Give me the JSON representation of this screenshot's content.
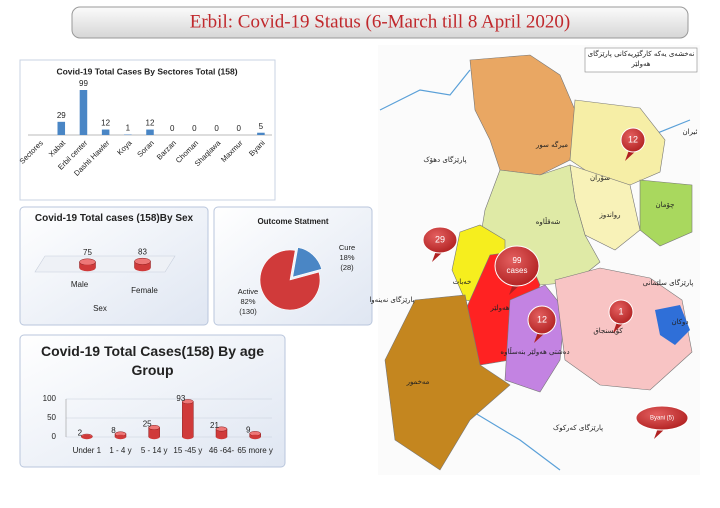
{
  "header": {
    "title": "Erbil: Covid-19 Status (6-March till 8 April 2020)"
  },
  "chart_data": [
    {
      "type": "bar",
      "title": "Covid-19 Total Cases  By Sectores Total (158)",
      "categories": [
        "Sectores",
        "Xabat",
        "Erbil center",
        "Dashti Hawler",
        "Koya",
        "Soran",
        "Barzan",
        "Choman",
        "Shaqlawa",
        "Maxmur",
        "Byani"
      ],
      "values": [
        null,
        29,
        99,
        12,
        1,
        12,
        0,
        0,
        0,
        0,
        5
      ],
      "color": "#4a86c5"
    },
    {
      "type": "cylinder",
      "title": "Covid-19 Total cases (158)By Sex",
      "categories": [
        "Male",
        "Female"
      ],
      "values": [
        75,
        83
      ],
      "x_label": "Sex",
      "color": "#d03a3a"
    },
    {
      "type": "pie",
      "title": "Outcome Statment",
      "categories": [
        "Cure",
        "Active"
      ],
      "values": [
        18,
        82
      ],
      "value_labels": [
        "18%",
        "82%"
      ],
      "count_labels": [
        "(28)",
        "(130)"
      ],
      "colors": [
        "#4a86c5",
        "#d03a3a"
      ]
    },
    {
      "type": "cylinder",
      "title": "Covid-19 Total Cases(158)  By age Group",
      "categories": [
        "Under 1",
        "1 - 4 y",
        "5 - 14 y",
        "15 -45 y",
        "46 -64-",
        "65 more y"
      ],
      "values": [
        2,
        8,
        25,
        93,
        21,
        9
      ],
      "ylim": [
        0,
        100
      ],
      "yticks": [
        0,
        50,
        100
      ],
      "grid": true,
      "color": "#d03a3a"
    }
  ],
  "map": {
    "legend": "نەخشەی یەکە کارگێڕیەکانی پارێزگای هەولێر",
    "labels": [
      "پارێزگای دهۆک",
      "میرگە سور",
      "سۆران",
      "ئیران",
      "چۆمان",
      "رواندوز",
      "شەقڵاوە",
      "خەبات",
      "هەولێر",
      "پارێزگای سلێمانی",
      "دوکان",
      "کۆیسنجاق",
      "دەشتی هەولێر بنەسڵاوە",
      "پارێزگای نەینەوا",
      "مەخمور",
      "پارێزگای کەرکوک"
    ],
    "bubbles": [
      {
        "value": "12"
      },
      {
        "value": "29"
      },
      {
        "value": "99",
        "unit": "cases"
      },
      {
        "value": "12"
      },
      {
        "value": "1"
      },
      {
        "value": "Byani (5)"
      }
    ]
  }
}
